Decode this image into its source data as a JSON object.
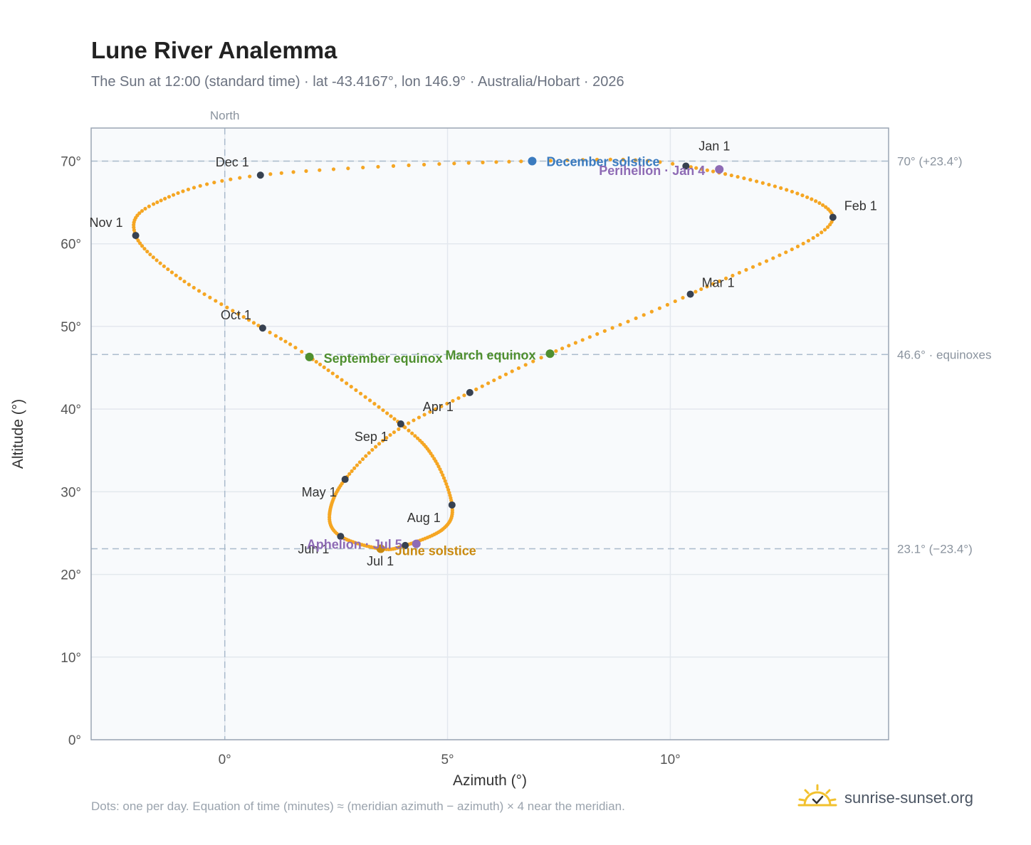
{
  "title": "Lune River Analemma",
  "subtitle": "The Sun at 12:00 (standard time) · lat -43.4167°, lon 146.9° · Australia/Hobart · 2026",
  "footnote": "Dots: one per day. Equation of time (minutes) ≈ (meridian azimuth − azimuth) × 4 near the meridian.",
  "brand": {
    "name": "sunrise-sunset.org",
    "logo_icon": "sun-logo-icon"
  },
  "colors": {
    "curve": "#f5a623",
    "month_marker": "#374151",
    "december_solstice": "#3b7bbf",
    "perihelion": "#8e6bb5",
    "equinox": "#4f8f2f",
    "june_solstice": "#c98a10",
    "aphelion": "#8e6bb5",
    "reference_line": "#aabbcc",
    "plot_background": "#f8fafc",
    "plot_border": "#9aa5b4"
  },
  "chart_data": {
    "type": "scatter",
    "xlabel": "Azimuth (°)",
    "ylabel": "Altitude (°)",
    "xlim": [
      -3,
      14.9
    ],
    "ylim": [
      0,
      74
    ],
    "x_ticks": [
      0,
      5,
      10
    ],
    "x_tick_labels": [
      "0°",
      "5°",
      "10°"
    ],
    "y_ticks": [
      0,
      10,
      20,
      30,
      40,
      50,
      60,
      70
    ],
    "y_tick_labels": [
      "0°",
      "10°",
      "20°",
      "30°",
      "40°",
      "50°",
      "60°",
      "70°"
    ],
    "grid": true,
    "north_line": {
      "x": 0,
      "label": "North"
    },
    "reference_lines": [
      {
        "y": 70,
        "label": "70° (+23.4°)"
      },
      {
        "y": 46.6,
        "label": "46.6° · equinoxes"
      },
      {
        "y": 23.1,
        "label": "23.1° (−23.4°)"
      }
    ],
    "series": [
      {
        "name": "",
        "daily_path_nodes": [
          {
            "day": 1,
            "x": 10.35,
            "y": 69.4
          },
          {
            "day": 32,
            "x": 13.65,
            "y": 63.2
          },
          {
            "day": 60,
            "x": 10.45,
            "y": 53.9
          },
          {
            "day": 79,
            "x": 7.3,
            "y": 46.7
          },
          {
            "day": 91,
            "x": 5.5,
            "y": 42.0
          },
          {
            "day": 105,
            "x": 3.8,
            "y": 37.2
          },
          {
            "day": 121,
            "x": 2.7,
            "y": 31.5
          },
          {
            "day": 140,
            "x": 2.35,
            "y": 27.2
          },
          {
            "day": 152,
            "x": 2.6,
            "y": 24.6
          },
          {
            "day": 172,
            "x": 3.5,
            "y": 23.1
          },
          {
            "day": 182,
            "x": 4.05,
            "y": 23.5
          },
          {
            "day": 200,
            "x": 4.9,
            "y": 25.5
          },
          {
            "day": 213,
            "x": 5.1,
            "y": 28.4
          },
          {
            "day": 230,
            "x": 4.7,
            "y": 34.0
          },
          {
            "day": 244,
            "x": 3.95,
            "y": 38.2
          },
          {
            "day": 266,
            "x": 1.9,
            "y": 46.3
          },
          {
            "day": 274,
            "x": 0.85,
            "y": 49.8
          },
          {
            "day": 290,
            "x": -1.0,
            "y": 55.8
          },
          {
            "day": 305,
            "x": -2.0,
            "y": 61.0
          },
          {
            "day": 318,
            "x": -1.6,
            "y": 64.8
          },
          {
            "day": 335,
            "x": 0.8,
            "y": 68.3
          },
          {
            "day": 355,
            "x": 6.9,
            "y": 70.0
          },
          {
            "day": 366,
            "x": 10.35,
            "y": 69.4
          }
        ]
      }
    ],
    "month_markers": [
      {
        "label": "Jan 1",
        "x": 10.35,
        "y": 69.4
      },
      {
        "label": "Feb 1",
        "x": 13.65,
        "y": 63.2
      },
      {
        "label": "Mar 1",
        "x": 10.45,
        "y": 53.9
      },
      {
        "label": "Apr 1",
        "x": 5.5,
        "y": 42.0
      },
      {
        "label": "May 1",
        "x": 2.7,
        "y": 31.5
      },
      {
        "label": "Jun 1",
        "x": 2.6,
        "y": 24.6
      },
      {
        "label": "Jul 1",
        "x": 4.05,
        "y": 23.5
      },
      {
        "label": "Aug 1",
        "x": 5.1,
        "y": 28.4
      },
      {
        "label": "Sep 1",
        "x": 3.95,
        "y": 38.2
      },
      {
        "label": "Oct 1",
        "x": 0.85,
        "y": 49.8
      },
      {
        "label": "Nov 1",
        "x": -2.0,
        "y": 61.0
      },
      {
        "label": "Dec 1",
        "x": 0.8,
        "y": 68.3
      }
    ],
    "events": [
      {
        "label": "December solstice",
        "x": 6.9,
        "y": 70.0,
        "color_key": "december_solstice"
      },
      {
        "label": "Perihelion · Jan 4",
        "x": 11.1,
        "y": 69.0,
        "color_key": "perihelion"
      },
      {
        "label": "March equinox",
        "x": 7.3,
        "y": 46.7,
        "color_key": "equinox"
      },
      {
        "label": "September equinox",
        "x": 1.9,
        "y": 46.3,
        "color_key": "equinox"
      },
      {
        "label": "June solstice",
        "x": 3.5,
        "y": 23.1,
        "color_key": "june_solstice"
      },
      {
        "label": "Aphelion · Jul 5",
        "x": 4.3,
        "y": 23.7,
        "color_key": "aphelion"
      }
    ]
  }
}
